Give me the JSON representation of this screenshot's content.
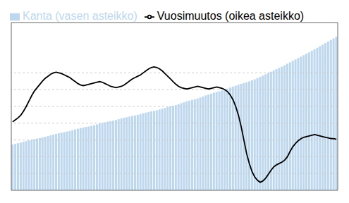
{
  "chart_data": {
    "type": "bar",
    "categories": [
      null,
      null,
      null,
      null,
      null,
      null,
      null,
      null,
      null,
      null,
      null,
      null,
      null,
      null,
      null,
      null,
      null,
      null,
      null,
      null,
      null,
      null,
      null,
      null,
      null,
      null,
      null,
      null,
      null,
      null,
      null,
      null,
      null,
      null,
      null,
      null,
      null,
      null,
      null,
      null,
      null,
      null,
      null,
      null,
      null,
      null,
      null,
      null,
      null,
      null,
      null,
      null,
      null,
      null,
      null,
      null,
      null,
      null,
      null,
      null,
      null,
      null,
      null,
      null,
      null,
      null,
      null,
      null,
      null,
      null,
      null,
      null,
      null,
      null,
      null,
      null,
      null,
      null,
      null,
      null,
      null,
      null,
      null,
      null,
      null,
      null,
      null,
      null,
      null,
      null,
      null,
      null,
      null,
      null,
      null,
      null,
      null,
      null,
      null,
      null,
      null,
      null,
      null,
      null,
      null,
      null,
      null,
      null,
      null,
      null,
      null,
      null,
      null,
      null,
      null,
      null,
      null,
      null,
      null,
      null
    ],
    "series": [
      {
        "name": "Kanta (vasen asteikko)",
        "type": "bar",
        "color": "#bdd7ee",
        "values": [
          35500,
          36000,
          36500,
          37000,
          37600,
          38200,
          38700,
          39200,
          39700,
          40100,
          40500,
          41000,
          41500,
          42000,
          42600,
          43200,
          43700,
          44200,
          44700,
          45100,
          45500,
          46000,
          46600,
          47200,
          47700,
          48200,
          48700,
          49100,
          49500,
          50000,
          50500,
          51100,
          51700,
          52200,
          52700,
          53200,
          53600,
          54000,
          54500,
          55100,
          55700,
          56200,
          56700,
          57200,
          57600,
          58000,
          58500,
          59100,
          59700,
          60200,
          60700,
          61200,
          61600,
          62000,
          62600,
          63200,
          63800,
          64400,
          65000,
          65500,
          66000,
          66700,
          67500,
          68200,
          68900,
          69500,
          70100,
          70600,
          71200,
          71900,
          72700,
          73500,
          74200,
          74900,
          75600,
          76200,
          76700,
          77300,
          78000,
          78800,
          79600,
          80400,
          81100,
          81800,
          82500,
          83100,
          83700,
          84400,
          85200,
          86000,
          86900,
          87900,
          88900,
          89900,
          90900,
          91900,
          92900,
          93900,
          94900,
          95900,
          97000,
          98100,
          99200,
          100300,
          101400,
          102500,
          103600,
          104700,
          105800,
          106900,
          108100,
          109300,
          110500,
          111700,
          112900,
          114100,
          115300,
          116500,
          117700,
          119000
        ]
      },
      {
        "name": "Vuosimuutos (oikea asteikko)",
        "type": "line",
        "color": "#000000",
        "axis": "y2",
        "values": [
          5.2,
          5.5,
          5.8,
          6.2,
          6.8,
          7.5,
          8.3,
          9.1,
          9.8,
          10.3,
          10.8,
          11.3,
          11.7,
          12.0,
          12.3,
          12.5,
          12.6,
          12.5,
          12.4,
          12.2,
          12.0,
          11.8,
          11.5,
          11.2,
          10.9,
          10.7,
          10.6,
          10.7,
          10.8,
          10.9,
          11.0,
          11.1,
          11.2,
          11.1,
          10.9,
          10.7,
          10.5,
          10.4,
          10.3,
          10.4,
          10.5,
          10.7,
          11.0,
          11.3,
          11.6,
          11.8,
          12.0,
          12.2,
          12.5,
          12.8,
          13.1,
          13.3,
          13.4,
          13.3,
          13.1,
          12.8,
          12.4,
          12.0,
          11.6,
          11.2,
          10.8,
          10.5,
          10.3,
          10.2,
          10.1,
          10.2,
          10.3,
          10.4,
          10.5,
          10.4,
          10.3,
          10.2,
          10.1,
          10.2,
          10.3,
          10.4,
          10.3,
          10.2,
          10.0,
          9.7,
          9.2,
          8.5,
          7.5,
          6.2,
          4.5,
          2.5,
          0.5,
          -1.0,
          -2.2,
          -3.0,
          -3.5,
          -3.8,
          -3.6,
          -3.2,
          -2.6,
          -2.0,
          -1.5,
          -1.2,
          -1.0,
          -0.8,
          -0.5,
          0.0,
          0.8,
          1.5,
          2.0,
          2.4,
          2.7,
          2.9,
          3.0,
          3.1,
          3.2,
          3.3,
          3.2,
          3.1,
          3.0,
          2.9,
          2.8,
          2.7,
          2.7,
          2.6
        ]
      }
    ],
    "ylim": [
      0,
      130000
    ],
    "y2lim": [
      -5,
      20
    ],
    "y2ticks": [
      -2.5,
      0,
      2.5,
      5,
      7.5,
      10,
      12.5
    ],
    "grid": true,
    "legend": "upper left",
    "tick_labels": false
  }
}
